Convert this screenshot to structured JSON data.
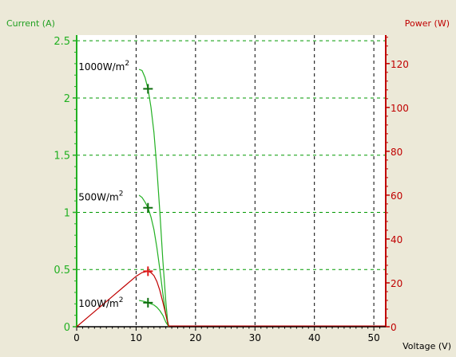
{
  "chart_data": {
    "type": "line",
    "xlabel": "Voltage (V)",
    "ylabel": "Current (A)",
    "y2label": "Power (W)",
    "xlim": [
      0,
      52
    ],
    "ylim": [
      0,
      2.55
    ],
    "y2lim": [
      0,
      133
    ],
    "xticks": [
      "0",
      "10",
      "20",
      "30",
      "40",
      "50"
    ],
    "xtick_values": [
      0,
      10,
      20,
      30,
      40,
      50
    ],
    "yticks": [
      "0",
      "0.5",
      "1",
      "1.5",
      "2",
      "2.5"
    ],
    "ytick_values": [
      0,
      0.5,
      1,
      1.5,
      2,
      2.5
    ],
    "y2ticks": [
      "0",
      "20",
      "40",
      "60",
      "80",
      "100",
      "120"
    ],
    "y2tick_values": [
      0,
      20,
      40,
      60,
      80,
      100,
      120
    ],
    "grid": true,
    "colors": {
      "current": "#22b022",
      "power": "#c00000",
      "mpp_current": "#0e6e0e",
      "mpp_power": "#e01818",
      "grid": "#009900",
      "plot_bg": "#ffffff",
      "window_bg": "#ece9d8"
    },
    "series": [
      {
        "axis": "left",
        "x": [
          10.5,
          11.0,
          11.5,
          12.0,
          12.5,
          13.0,
          13.5,
          14.0,
          14.5,
          15.0,
          15.3,
          15.5
        ],
        "y": [
          2.25,
          2.24,
          2.18,
          2.08,
          1.92,
          1.7,
          1.38,
          1.0,
          0.58,
          0.22,
          0.05,
          0.0
        ]
      },
      {
        "axis": "left",
        "x": [
          10.5,
          11.0,
          11.5,
          12.0,
          12.5,
          13.0,
          13.5,
          14.0,
          14.5,
          15.0,
          15.3,
          15.5
        ],
        "y": [
          1.15,
          1.13,
          1.09,
          1.04,
          0.96,
          0.85,
          0.69,
          0.5,
          0.29,
          0.11,
          0.03,
          0.0
        ]
      },
      {
        "axis": "left",
        "x": [
          10.5,
          11.0,
          11.5,
          12.0,
          12.5,
          13.0,
          13.5,
          14.0,
          14.5,
          15.0,
          15.5
        ],
        "y": [
          0.23,
          0.225,
          0.22,
          0.21,
          0.2,
          0.19,
          0.17,
          0.14,
          0.1,
          0.04,
          0.0
        ]
      },
      {
        "axis": "right",
        "x": [
          0,
          2,
          4,
          6,
          8,
          10,
          11,
          12,
          12.5,
          13,
          13.5,
          14,
          14.5,
          15,
          15.5
        ],
        "y": [
          0,
          4.6,
          9.2,
          13.8,
          18.4,
          23.0,
          24.7,
          25.3,
          24.7,
          23.3,
          20.6,
          16.5,
          11.2,
          5.5,
          0
        ]
      }
    ],
    "curve_labels": [
      {
        "text": "1000W/m",
        "sup": "2",
        "x": 0.3,
        "y": 2.28
      },
      {
        "text": "500W/m",
        "sup": "2",
        "x": 0.3,
        "y": 1.14
      },
      {
        "text": "100W/m",
        "sup": "2",
        "x": 0.3,
        "y": 0.21
      }
    ],
    "mpp_markers": [
      {
        "axis": "left",
        "x": 12.0,
        "y": 2.08
      },
      {
        "axis": "left",
        "x": 12.0,
        "y": 1.04
      },
      {
        "axis": "left",
        "x": 12.0,
        "y": 0.21
      },
      {
        "axis": "right",
        "x": 12.0,
        "y": 25.3
      }
    ]
  }
}
